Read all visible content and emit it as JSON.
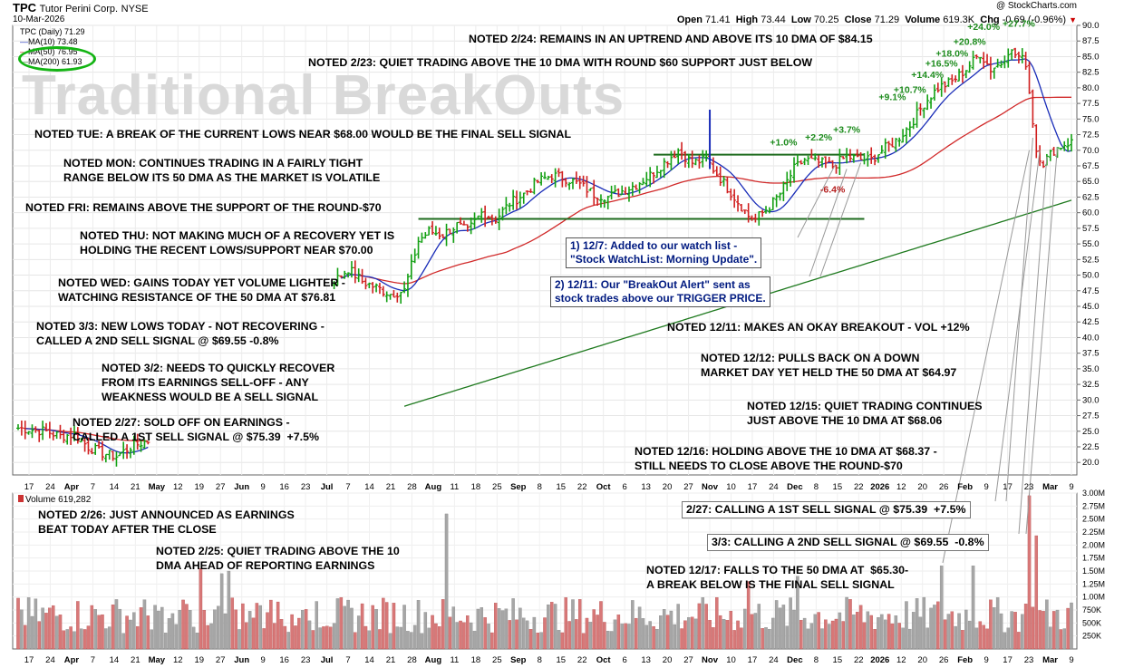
{
  "header": {
    "symbol": "TPC",
    "company": "Tutor Perini Corp.",
    "exchange": "NYSE",
    "date": "10-Mar-2026",
    "credit": "@ StockCharts.com",
    "open_label": "Open",
    "open": "71.41",
    "high_label": "High",
    "high": "73.44",
    "low_label": "Low",
    "low": "70.25",
    "close_label": "Close",
    "close": "71.29",
    "volume_label": "Volume",
    "volume": "619.3K",
    "chg_label": "Chg",
    "chg": "-0.69 (-0.96%)"
  },
  "legend": {
    "symbol_line": "TPC (Daily) 71.29",
    "ma10": "MA(10) 73.48",
    "ma50": "MA(50) 76.95",
    "ma200": "MA(200) 61.93",
    "colors": {
      "ma10": "#1a2db8",
      "ma50": "#d12a2a",
      "ma200": "#1f7a1f",
      "circle": "#13b413"
    }
  },
  "watermark": "Traditional BreakOuts",
  "volume_panel": {
    "title": "Volume 619,282"
  },
  "notes": [
    "NOTED 2/24: REMAINS IN AN UPTREND AND ABOVE ITS 10 DMA OF $84.15",
    "NOTED 2/23: QUIET TRADING ABOVE THE 10 DMA WITH ROUND $60 SUPPORT JUST BELOW",
    "NOTED TUE: A BREAK OF THE CURRENT LOWS NEAR $68.00 WOULD BE THE FINAL SELL SIGNAL",
    "NOTED MON: CONTINUES TRADING IN A FAIRLY TIGHT\nRANGE BELOW ITS 50 DMA AS THE MARKET IS VOLATILE",
    "NOTED FRI: REMAINS ABOVE THE SUPPORT OF THE ROUND-$70",
    "NOTED THU: NOT MAKING MUCH OF A RECOVERY YET IS\nHOLDING THE RECENT LOWS/SUPPORT NEAR $70.00",
    "NOTED WED: GAINS TODAY YET VOLUME LIGHTER -\nWATCHING RESISTANCE OF THE 50 DMA AT $76.81",
    "NOTED 3/3: NEW LOWS TODAY - NOT RECOVERING -\nCALLED A 2ND SELL SIGNAL @ $69.55 -0.8%",
    "NOTED 3/2: NEEDS TO QUICKLY RECOVER\nFROM ITS EARNINGS SELL-OFF - ANY\nWEAKNESS WOULD BE A SELL SIGNAL",
    "NOTED 2/27: SOLD OFF ON EARNINGS -\nCALLED A 1ST SELL SIGNAL @ $75.39  +7.5%",
    "NOTED 12/11: MAKES AN OKAY BREAKOUT - VOL +12%",
    "NOTED 12/12: PULLS BACK ON A DOWN\nMARKET DAY YET HELD THE 50 DMA AT $64.97",
    "NOTED 12/15: QUIET TRADING CONTINUES\nJUST ABOVE THE 10 DMA AT $68.06",
    "NOTED 12/16: HOLDING ABOVE THE 10 DMA AT $68.37 -\nSTILL NEEDS TO CLOSE ABOVE THE ROUND-$70",
    "NOTED 2/26: JUST ANNOUNCED AS EARNINGS\nBEAT TODAY AFTER THE CLOSE",
    "NOTED 2/25: QUIET TRADING ABOVE THE 10\nDMA AHEAD OF REPORTING EARNINGS",
    "NOTED 12/17: FALLS TO THE 50 DMA AT  $65.30-\nA BREAK BELOW IS THE FINAL SELL SIGNAL"
  ],
  "callouts": [
    "1) 12/7: Added to our watch list -\n\"Stock WatchList: Morning Update\".",
    "2) 12/11: Our \"BreakOut Alert\" sent as\nstock trades above our TRIGGER PRICE.",
    "2/27: CALLING A 1ST SELL SIGNAL @ $75.39  +7.5%",
    "3/3: CALLING A 2ND SELL SIGNAL @ $69.55  -0.8%"
  ],
  "gain_labels": [
    "+1.0%",
    "+2.2%",
    "+3.7%",
    "+9.1%",
    "+10.7%",
    "+14.4%",
    "+16.5%",
    "+18.0%",
    "+20.8%",
    "+24.0%",
    "+27.7%"
  ],
  "loss_labels": [
    "-6.4%"
  ],
  "chart_data": {
    "type": "line",
    "title": "TPC Tutor Perini Corp. NYSE",
    "price_axis": {
      "ylim": [
        18,
        90
      ],
      "ticks": [
        20.0,
        22.5,
        25.0,
        27.5,
        30.0,
        32.5,
        35.0,
        37.5,
        40.0,
        42.5,
        45.0,
        47.5,
        50.0,
        52.5,
        55.0,
        57.5,
        60.0,
        62.5,
        65.0,
        67.5,
        70.0,
        72.5,
        75.0,
        77.5,
        80.0,
        82.5,
        85.0,
        87.5,
        90.0
      ],
      "tick_labels": [
        "20.0",
        "22.5",
        "25.0",
        "27.5",
        "30.0",
        "32.5",
        "35.0",
        "37.5",
        "40.0",
        "42.5",
        "45.0",
        "47.5",
        "50.0",
        "52.5",
        "55.0",
        "57.5",
        "60.0",
        "62.5",
        "65.0",
        "67.5",
        "70.0",
        "72.5",
        "75.0",
        "77.5",
        "80.0",
        "82.5",
        "85.0",
        "87.5",
        "90.0"
      ]
    },
    "volume_axis": {
      "ylim": [
        0,
        3000000
      ],
      "ticks": [
        250000,
        500000,
        750000,
        1000000,
        1250000,
        1500000,
        1750000,
        2000000,
        2250000,
        2500000,
        2750000,
        3000000
      ],
      "tick_labels": [
        "250K",
        "500K",
        "750K",
        "1.00M",
        "1.25M",
        "1.50M",
        "1.75M",
        "2.00M",
        "2.25M",
        "2.50M",
        "2.75M",
        "3.00M"
      ]
    },
    "x_labels": [
      "17",
      "24",
      "Apr",
      "7",
      "14",
      "21",
      "May",
      "12",
      "19",
      "27",
      "Jun",
      "9",
      "16",
      "23",
      "Jul",
      "7",
      "14",
      "21",
      "28",
      "Aug",
      "11",
      "18",
      "25",
      "Sep",
      "8",
      "15",
      "22",
      "Oct",
      "6",
      "13",
      "20",
      "27",
      "Nov",
      "10",
      "17",
      "24",
      "Dec",
      "8",
      "15",
      "22",
      "2026",
      "12",
      "20",
      "26",
      "Feb",
      "9",
      "17",
      "23",
      "Mar",
      "9"
    ],
    "x_label_bold": [
      "Apr",
      "May",
      "Jun",
      "Jul",
      "Aug",
      "Sep",
      "Oct",
      "Nov",
      "Dec",
      "2026",
      "Feb",
      "Mar"
    ],
    "price_anchors": [
      [
        0,
        25.5
      ],
      [
        8,
        25.0
      ],
      [
        12,
        24.2
      ],
      [
        16,
        24.5
      ],
      [
        20,
        22.5
      ],
      [
        24,
        21.5
      ],
      [
        28,
        21.0
      ],
      [
        32,
        22.5
      ],
      [
        37,
        23.5
      ],
      [
        90,
        49
      ],
      [
        94,
        51
      ],
      [
        98,
        49
      ],
      [
        102,
        48
      ],
      [
        106,
        47
      ],
      [
        110,
        47.5
      ],
      [
        114,
        55.5
      ],
      [
        117,
        57
      ],
      [
        121,
        56.5
      ],
      [
        125,
        58
      ],
      [
        128,
        57
      ],
      [
        132,
        60
      ],
      [
        136,
        59
      ],
      [
        140,
        61.5
      ],
      [
        144,
        63
      ],
      [
        148,
        65
      ],
      [
        152,
        66
      ],
      [
        156,
        65.5
      ],
      [
        160,
        64.5
      ],
      [
        164,
        63
      ],
      [
        168,
        62.5
      ],
      [
        172,
        63.5
      ],
      [
        176,
        64.5
      ],
      [
        180,
        66
      ],
      [
        184,
        68
      ],
      [
        188,
        70
      ],
      [
        192,
        68
      ],
      [
        196,
        68.5
      ],
      [
        200,
        65.5
      ],
      [
        204,
        62.5
      ],
      [
        208,
        59.5
      ],
      [
        210,
        59
      ],
      [
        214,
        61
      ],
      [
        217,
        63
      ],
      [
        221,
        67
      ],
      [
        224,
        68.5
      ],
      [
        228,
        68
      ],
      [
        232,
        67.5
      ],
      [
        236,
        69
      ],
      [
        240,
        68.5
      ],
      [
        243,
        68.5
      ],
      [
        246,
        70
      ],
      [
        250,
        71.5
      ],
      [
        254,
        74
      ],
      [
        258,
        77.5
      ],
      [
        262,
        80
      ],
      [
        266,
        81
      ],
      [
        270,
        83
      ],
      [
        274,
        85.5
      ],
      [
        277,
        83
      ],
      [
        280,
        84
      ],
      [
        282,
        86
      ],
      [
        285,
        85
      ],
      [
        287,
        84
      ],
      [
        290,
        70
      ],
      [
        292,
        68
      ],
      [
        295,
        70
      ],
      [
        298,
        71
      ],
      [
        300,
        71.3
      ]
    ],
    "ma10": 73.48,
    "ma50": 76.95,
    "ma200": 61.93,
    "horizontal_levels": [
      59.0,
      69.3
    ],
    "last_close": 71.29,
    "last_volume": 619282,
    "volume_peaks": [
      {
        "date": "Aug 8",
        "value": 2600000
      },
      {
        "date": "Feb 27",
        "value": 2950000
      },
      {
        "date": "Mar 2",
        "value": 2180000
      }
    ]
  }
}
